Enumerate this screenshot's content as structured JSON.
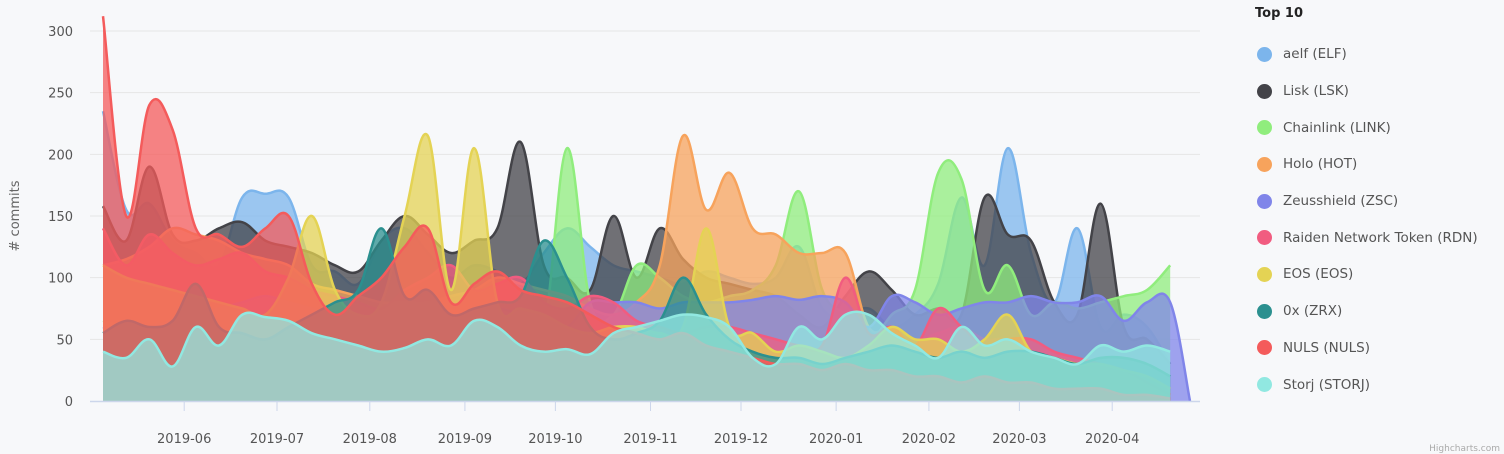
{
  "chart_data": {
    "type": "area",
    "title": "",
    "xlabel": "",
    "ylabel": "# commits",
    "ylim": [
      0,
      300
    ],
    "yticks": [
      0,
      50,
      100,
      150,
      200,
      250,
      300
    ],
    "grid": true,
    "legend_position": "right",
    "legend_title": "Top 10",
    "x_tick_labels": [
      "2019-06",
      "2019-07",
      "2019-08",
      "2019-09",
      "2019-10",
      "2019-11",
      "2019-12",
      "2020-01",
      "2020-02",
      "2020-03",
      "2020-04"
    ],
    "x_tick_weeks": [
      3.5,
      7.5,
      11.5,
      15.6,
      19.5,
      23.6,
      27.5,
      31.6,
      35.6,
      39.5,
      43.5
    ],
    "x_unit": "weekly, starting mid-May 2019 (week index 0..46)",
    "series": [
      {
        "name": "aelf (ELF)",
        "color": "#7cb5ec",
        "values": [
          235,
          155,
          160,
          130,
          120,
          110,
          165,
          168,
          165,
          110,
          105,
          95,
          130,
          140,
          120,
          100,
          110,
          105,
          95,
          120,
          140,
          125,
          110,
          105,
          100,
          95,
          105,
          100,
          95,
          100,
          125,
          75,
          70,
          75,
          60,
          70,
          95,
          165,
          110,
          205,
          120,
          80,
          140,
          60,
          70,
          60,
          30
        ]
      },
      {
        "name": "Lisk (LSK)",
        "color": "#434348",
        "values": [
          158,
          130,
          190,
          135,
          130,
          140,
          145,
          130,
          125,
          120,
          110,
          105,
          130,
          150,
          135,
          120,
          130,
          140,
          210,
          110,
          100,
          90,
          150,
          100,
          140,
          115,
          100,
          95,
          90,
          85,
          70,
          60,
          85,
          105,
          90,
          70,
          75,
          70,
          165,
          135,
          130,
          80,
          70,
          160,
          60,
          50,
          30
        ]
      },
      {
        "name": "Chainlink (LINK)",
        "color": "#90ed7d",
        "values": [
          65,
          60,
          55,
          50,
          50,
          45,
          55,
          60,
          50,
          45,
          40,
          55,
          60,
          60,
          60,
          55,
          60,
          70,
          80,
          60,
          205,
          80,
          70,
          110,
          100,
          85,
          80,
          85,
          90,
          110,
          170,
          90,
          70,
          50,
          70,
          90,
          185,
          180,
          90,
          110,
          70,
          80,
          75,
          80,
          85,
          90,
          110
        ]
      },
      {
        "name": "Holo (HOT)",
        "color": "#f7a35c",
        "values": [
          110,
          115,
          125,
          140,
          135,
          130,
          120,
          115,
          110,
          95,
          90,
          85,
          80,
          80,
          80,
          85,
          90,
          100,
          95,
          90,
          85,
          75,
          70,
          80,
          110,
          215,
          155,
          185,
          140,
          135,
          120,
          120,
          120,
          60,
          60,
          50,
          55,
          60,
          50,
          50,
          40,
          40,
          30,
          25,
          20,
          10,
          5
        ]
      },
      {
        "name": "Zeusshield (ZSC)",
        "color": "#8085e9",
        "values": [
          60,
          55,
          60,
          65,
          70,
          75,
          80,
          85,
          80,
          75,
          70,
          65,
          60,
          55,
          60,
          65,
          70,
          75,
          70,
          65,
          60,
          80,
          80,
          80,
          75,
          80,
          80,
          80,
          82,
          85,
          82,
          85,
          80,
          60,
          85,
          80,
          70,
          75,
          80,
          80,
          85,
          80,
          80,
          85,
          65,
          80,
          80
        ]
      },
      {
        "name": "Raiden Network Token (RDN)",
        "color": "#f15c80",
        "values": [
          140,
          110,
          135,
          120,
          110,
          115,
          120,
          105,
          100,
          90,
          85,
          80,
          75,
          90,
          100,
          110,
          90,
          95,
          100,
          80,
          75,
          85,
          80,
          65,
          60,
          55,
          60,
          60,
          55,
          50,
          45,
          45,
          100,
          55,
          60,
          45,
          75,
          60,
          45,
          50,
          50,
          40,
          35,
          30,
          25,
          15,
          5
        ]
      },
      {
        "name": "EOS (EOS)",
        "color": "#e4d354",
        "values": [
          110,
          100,
          95,
          90,
          85,
          80,
          75,
          70,
          100,
          150,
          90,
          70,
          80,
          150,
          215,
          90,
          205,
          80,
          75,
          70,
          60,
          55,
          60,
          60,
          55,
          60,
          140,
          60,
          55,
          40,
          45,
          40,
          35,
          45,
          60,
          50,
          50,
          40,
          50,
          70,
          40,
          35,
          30,
          30,
          25,
          20,
          10
        ]
      },
      {
        "name": "0x (ZRX)",
        "color": "#2b908f",
        "values": [
          55,
          65,
          60,
          65,
          95,
          60,
          55,
          50,
          60,
          70,
          80,
          90,
          140,
          85,
          90,
          70,
          75,
          80,
          85,
          130,
          100,
          60,
          50,
          55,
          65,
          100,
          70,
          50,
          40,
          35,
          35,
          30,
          35,
          40,
          45,
          40,
          35,
          40,
          35,
          40,
          40,
          35,
          30,
          35,
          35,
          30,
          20
        ]
      },
      {
        "name": "NULS (NULS)",
        "color": "#f45b5b",
        "values": [
          312,
          150,
          240,
          220,
          140,
          135,
          125,
          140,
          150,
          95,
          70,
          85,
          100,
          125,
          140,
          80,
          95,
          105,
          90,
          85,
          80,
          70,
          60,
          55,
          50,
          55,
          45,
          40,
          35,
          30,
          30,
          25,
          30,
          25,
          25,
          20,
          20,
          15,
          20,
          15,
          15,
          10,
          10,
          10,
          5,
          5,
          2
        ]
      },
      {
        "name": "Storj (STORJ)",
        "color": "#91e8e1",
        "values": [
          40,
          35,
          50,
          28,
          60,
          45,
          70,
          68,
          65,
          55,
          50,
          45,
          40,
          43,
          50,
          45,
          65,
          60,
          45,
          40,
          42,
          38,
          55,
          60,
          65,
          70,
          68,
          60,
          35,
          30,
          60,
          50,
          70,
          70,
          55,
          45,
          35,
          60,
          45,
          50,
          40,
          35,
          30,
          45,
          40,
          45,
          40
        ]
      }
    ]
  },
  "axis": {
    "ylabel": "# commits"
  },
  "legend": {
    "title": "Top 10",
    "items": [
      {
        "label": "aelf (ELF)",
        "color": "#7cb5ec"
      },
      {
        "label": "Lisk (LSK)",
        "color": "#434348"
      },
      {
        "label": "Chainlink (LINK)",
        "color": "#90ed7d"
      },
      {
        "label": "Holo (HOT)",
        "color": "#f7a35c"
      },
      {
        "label": "Zeusshield (ZSC)",
        "color": "#8085e9"
      },
      {
        "label": "Raiden Network Token (RDN)",
        "color": "#f15c80"
      },
      {
        "label": "EOS (EOS)",
        "color": "#e4d354"
      },
      {
        "label": "0x (ZRX)",
        "color": "#2b908f"
      },
      {
        "label": "NULS (NULS)",
        "color": "#f45b5b"
      },
      {
        "label": "Storj (STORJ)",
        "color": "#91e8e1"
      }
    ]
  },
  "credit": "Highcharts.com"
}
